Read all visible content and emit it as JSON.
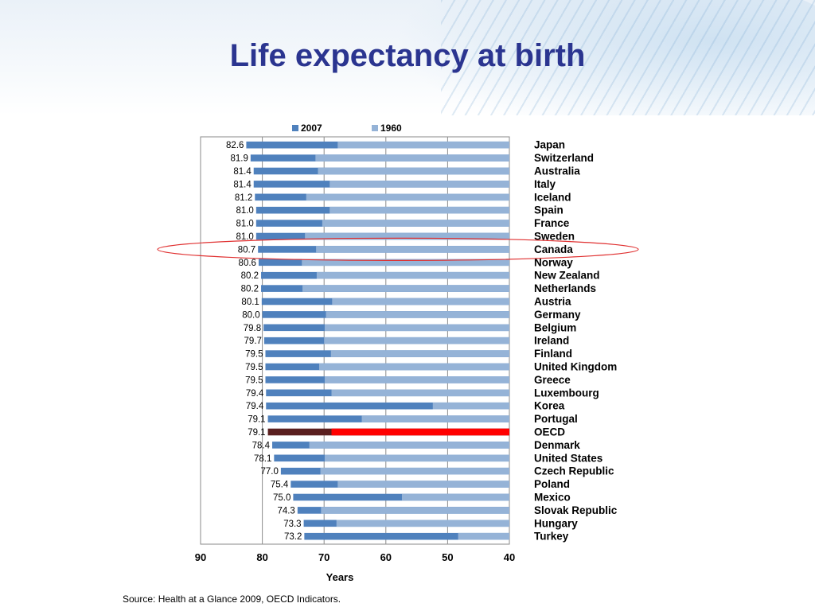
{
  "slide": {
    "title": "Life expectancy at birth",
    "source": "Source: Health at a Glance 2009, OECD Indicators."
  },
  "colors": {
    "title": "#2b3590",
    "series_2007": "#4f81bd",
    "series_1960": "#95b3d7",
    "highlight_2007": "#5a1f1f",
    "highlight_1960": "#ff0000",
    "callout_ring": "#e03030"
  },
  "chart_data": {
    "type": "bar",
    "orientation": "horizontal",
    "x_axis_reversed": true,
    "xlabel": "Years",
    "xlim": [
      40,
      90
    ],
    "xticks": [
      90,
      80,
      70,
      60,
      50,
      40
    ],
    "grid": true,
    "legend_position": "top",
    "highlighted_category": "OECD",
    "circled_category": "Canada",
    "categories": [
      "Japan",
      "Switzerland",
      "Australia",
      "Italy",
      "Iceland",
      "Spain",
      "France",
      "Sweden",
      "Canada",
      "Norway",
      "New Zealand",
      "Netherlands",
      "Austria",
      "Germany",
      "Belgium",
      "Ireland",
      "Finland",
      "United Kingdom",
      "Greece",
      "Luxembourg",
      "Korea",
      "Portugal",
      "OECD",
      "Denmark",
      "United States",
      "Czech Republic",
      "Poland",
      "Mexico",
      "Slovak Republic",
      "Hungary",
      "Turkey"
    ],
    "labels": [
      "82.6",
      "81.9",
      "81.4",
      "81.4",
      "81.2",
      "81.0",
      "81.0",
      "81.0",
      "80.7",
      "80.6",
      "80.2",
      "80.2",
      "80.1",
      "80.0",
      "79.8",
      "79.7",
      "79.5",
      "79.5",
      "79.5",
      "79.4",
      "79.4",
      "79.1",
      "79.1",
      "78.4",
      "78.1",
      "77.0",
      "75.4",
      "75.0",
      "74.3",
      "73.3",
      "73.2"
    ],
    "series": [
      {
        "name": "2007",
        "values": [
          82.6,
          81.9,
          81.4,
          81.4,
          81.2,
          81.0,
          81.0,
          81.0,
          80.7,
          80.6,
          80.2,
          80.2,
          80.1,
          80.0,
          79.8,
          79.7,
          79.5,
          79.5,
          79.5,
          79.4,
          79.4,
          79.1,
          79.1,
          78.4,
          78.1,
          77.0,
          75.4,
          75.0,
          74.3,
          73.3,
          73.2
        ]
      },
      {
        "name": "1960",
        "values": [
          67.8,
          71.4,
          71.0,
          69.1,
          72.9,
          69.1,
          70.3,
          73.1,
          71.3,
          73.6,
          71.2,
          73.5,
          68.7,
          69.7,
          69.9,
          70.0,
          68.9,
          70.8,
          69.9,
          68.8,
          52.4,
          63.9,
          68.8,
          72.4,
          69.9,
          70.6,
          67.8,
          57.4,
          70.5,
          68.0,
          48.3
        ]
      }
    ]
  }
}
